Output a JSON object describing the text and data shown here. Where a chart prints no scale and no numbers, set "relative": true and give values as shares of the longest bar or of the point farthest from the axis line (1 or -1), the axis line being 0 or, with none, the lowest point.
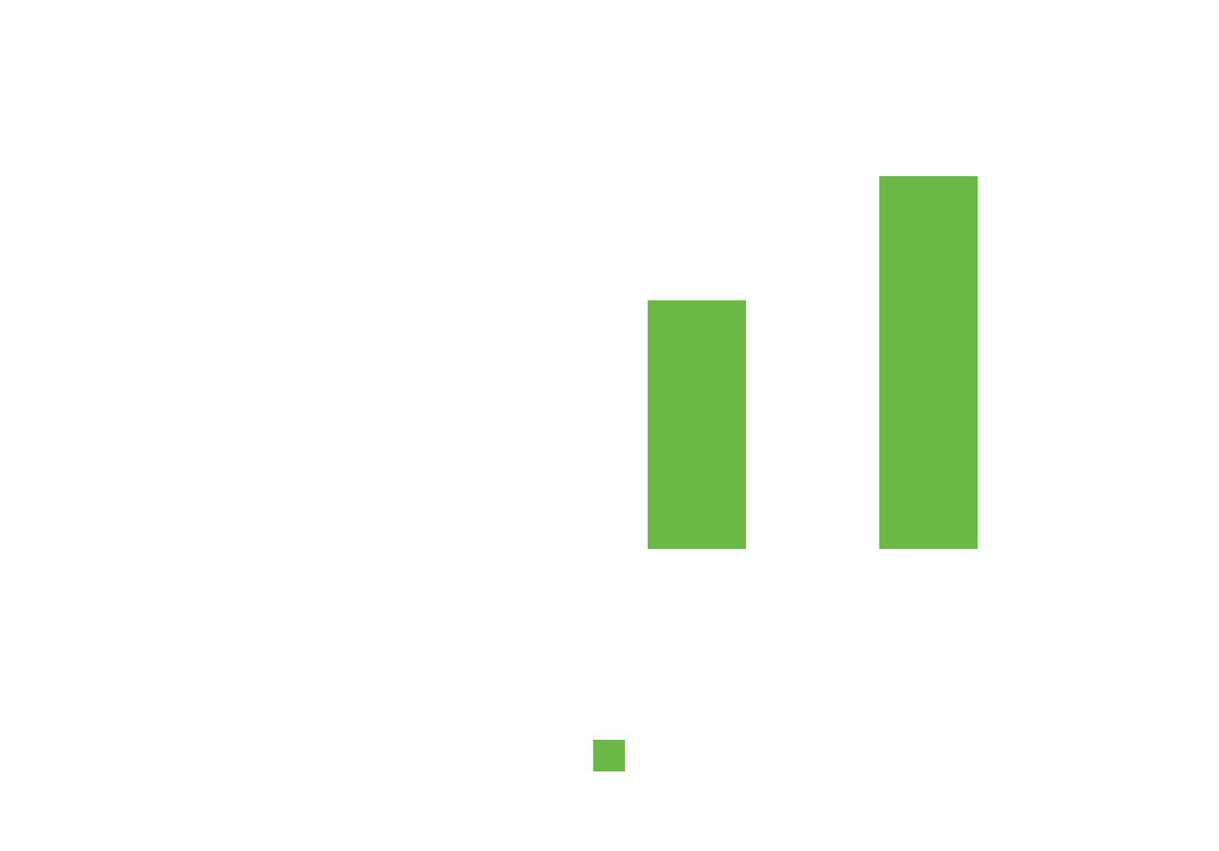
{
  "chart_data": {
    "type": "bar",
    "relative": true,
    "categories": [
      null,
      null
    ],
    "series": [
      {
        "color": "#6ab947",
        "values": [
          0.667,
          1
        ]
      }
    ],
    "grid": false
  }
}
